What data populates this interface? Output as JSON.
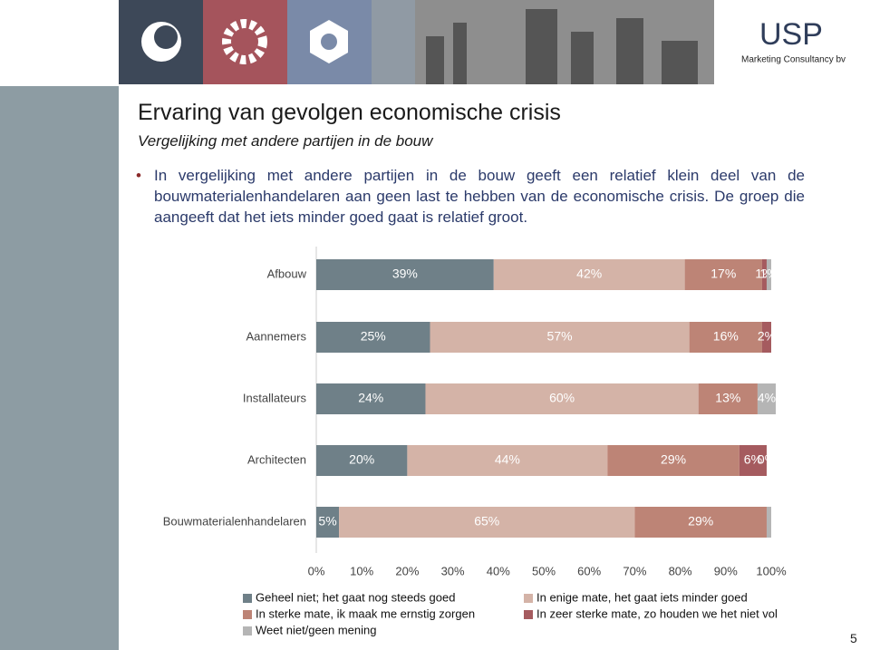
{
  "slide": {
    "title": "Ervaring van gevolgen economische crisis",
    "subtitle": "Vergelijking met andere partijen in de bouw",
    "bullet": "In vergelijking met andere partijen in de bouw geeft een relatief klein deel van de bouwmaterialenhandelaren aan geen last te hebben van de economische crisis. De groep die aangeeft dat het iets minder goed gaat is relatief groot.",
    "logo": "USP",
    "logo_tagline": "Marketing Consultancy bv",
    "page_number": "5"
  },
  "chart_data": {
    "type": "stacked-barh",
    "categories": [
      "Afbouw",
      "Aannemers",
      "Installateurs",
      "Architecten",
      "Bouwmaterialenhandelaren"
    ],
    "series": [
      {
        "name": "Geheel niet; het gaat nog steeds goed",
        "color": "#6f8088",
        "values": [
          39,
          25,
          24,
          20,
          5
        ],
        "value_labels": [
          "39%",
          "25%",
          "24%",
          "20%",
          "5%"
        ]
      },
      {
        "name": "In enige mate, het gaat iets minder goed",
        "color": "#d4b3a7",
        "values": [
          42,
          57,
          60,
          44,
          65
        ],
        "value_labels": [
          "42%",
          "57%",
          "60%",
          "44%",
          "65%"
        ]
      },
      {
        "name": "In sterke mate, ik maak me ernstig zorgen",
        "color": "#bd8476",
        "values": [
          17,
          16,
          13,
          29,
          29
        ],
        "value_labels": [
          "17%",
          "16%",
          "13%",
          "29%",
          "29%"
        ]
      },
      {
        "name": "In zeer sterke mate, zo houden we het niet vol",
        "color": "#a55b5f",
        "values": [
          1,
          2,
          0,
          6,
          0
        ],
        "value_labels": [
          "1%",
          "2%",
          null,
          "6%",
          null
        ]
      },
      {
        "name": "Weet niet/geen mening",
        "color": "#b5b5b5",
        "values": [
          1,
          0,
          4,
          0,
          1
        ],
        "value_labels": [
          "1%",
          null,
          "4%",
          "0%",
          null
        ]
      }
    ],
    "xlim": [
      0,
      100
    ],
    "xticks": [
      {
        "value": 0,
        "label": "0%"
      },
      {
        "value": 10,
        "label": "10%"
      },
      {
        "value": 20,
        "label": "20%"
      },
      {
        "value": 30,
        "label": "30%"
      },
      {
        "value": 40,
        "label": "40%"
      },
      {
        "value": 50,
        "label": "50%"
      },
      {
        "value": 60,
        "label": "60%"
      },
      {
        "value": 70,
        "label": "70%"
      },
      {
        "value": 80,
        "label": "80%"
      },
      {
        "value": 90,
        "label": "90%"
      },
      {
        "value": 100,
        "label": "100%"
      }
    ]
  }
}
